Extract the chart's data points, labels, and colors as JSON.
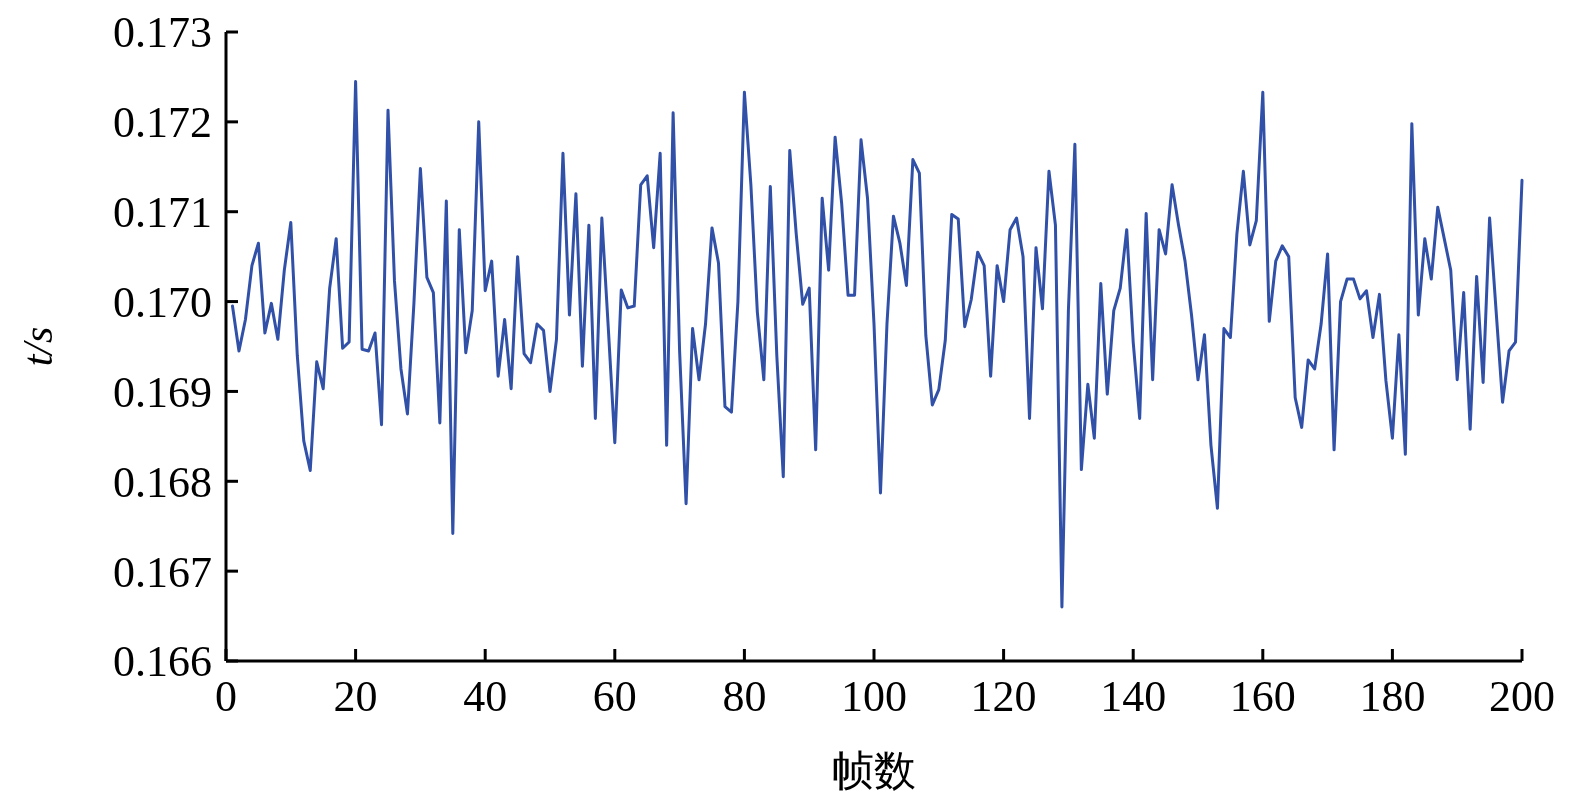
{
  "chart_data": {
    "type": "line",
    "xlabel": "帧数",
    "ylabel": "t/s",
    "xlim": [
      0,
      200
    ],
    "xticks": [
      0,
      20,
      40,
      60,
      80,
      100,
      120,
      140,
      160,
      180,
      200
    ],
    "ylim": [
      0.166,
      0.173
    ],
    "yticks": [
      {
        "value": 0.166,
        "label": "0.166"
      },
      {
        "value": 0.167,
        "label": "0.167"
      },
      {
        "value": 0.168,
        "label": "0.168"
      },
      {
        "value": 0.169,
        "label": "0.169"
      },
      {
        "value": 0.17,
        "label": "0.170"
      },
      {
        "value": 0.171,
        "label": "0.171"
      },
      {
        "value": 0.172,
        "label": "0.172"
      },
      {
        "value": 0.173,
        "label": "0.173"
      }
    ],
    "grid": false,
    "marker": "none",
    "line_style": "solid",
    "x": [
      1,
      2,
      3,
      4,
      5,
      6,
      7,
      8,
      9,
      10,
      11,
      12,
      13,
      14,
      15,
      16,
      17,
      18,
      19,
      20,
      21,
      22,
      23,
      24,
      25,
      26,
      27,
      28,
      29,
      30,
      31,
      32,
      33,
      34,
      35,
      36,
      37,
      38,
      39,
      40,
      41,
      42,
      43,
      44,
      45,
      46,
      47,
      48,
      49,
      50,
      51,
      52,
      53,
      54,
      55,
      56,
      57,
      58,
      59,
      60,
      61,
      62,
      63,
      64,
      65,
      66,
      67,
      68,
      69,
      70,
      71,
      72,
      73,
      74,
      75,
      76,
      77,
      78,
      79,
      80,
      81,
      82,
      83,
      84,
      85,
      86,
      87,
      88,
      89,
      90,
      91,
      92,
      93,
      94,
      95,
      96,
      97,
      98,
      99,
      100,
      101,
      102,
      103,
      104,
      105,
      106,
      107,
      108,
      109,
      110,
      111,
      112,
      113,
      114,
      115,
      116,
      117,
      118,
      119,
      120,
      121,
      122,
      123,
      124,
      125,
      126,
      127,
      128,
      129,
      130,
      131,
      132,
      133,
      134,
      135,
      136,
      137,
      138,
      139,
      140,
      141,
      142,
      143,
      144,
      145,
      146,
      147,
      148,
      149,
      150,
      151,
      152,
      153,
      154,
      155,
      156,
      157,
      158,
      159,
      160,
      161,
      162,
      163,
      164,
      165,
      166,
      167,
      168,
      169,
      170,
      171,
      172,
      173,
      174,
      175,
      176,
      177,
      178,
      179,
      180,
      181,
      182,
      183,
      184,
      185,
      186,
      187,
      188,
      189,
      190,
      191,
      192,
      193,
      194,
      195,
      196,
      197,
      198,
      199,
      200
    ],
    "series": [
      {
        "color": "#3150a8",
        "values": [
          0.16995,
          0.16945,
          0.1698,
          0.1704,
          0.17065,
          0.16965,
          0.16998,
          0.16958,
          0.17035,
          0.17088,
          0.1694,
          0.16845,
          0.16812,
          0.16933,
          0.16903,
          0.17015,
          0.1707,
          0.16948,
          0.16955,
          0.17245,
          0.16947,
          0.16945,
          0.16965,
          0.16863,
          0.17213,
          0.17023,
          0.16925,
          0.16875,
          0.16998,
          0.17148,
          0.17027,
          0.1701,
          0.16865,
          0.17112,
          0.16742,
          0.1708,
          0.16943,
          0.1699,
          0.172,
          0.17012,
          0.17045,
          0.16917,
          0.1698,
          0.16903,
          0.1705,
          0.16942,
          0.16932,
          0.16975,
          0.16968,
          0.169,
          0.16958,
          0.17165,
          0.16985,
          0.1712,
          0.16928,
          0.17085,
          0.1687,
          0.17093,
          0.1697,
          0.16843,
          0.17013,
          0.16993,
          0.16995,
          0.1713,
          0.1714,
          0.1706,
          0.17165,
          0.1684,
          0.1721,
          0.16945,
          0.16775,
          0.1697,
          0.16913,
          0.16975,
          0.17082,
          0.17043,
          0.16883,
          0.16877,
          0.17,
          0.17233,
          0.1713,
          0.16988,
          0.16913,
          0.17128,
          0.1694,
          0.16805,
          0.17168,
          0.17075,
          0.16997,
          0.17015,
          0.16835,
          0.17115,
          0.17035,
          0.17183,
          0.1711,
          0.17007,
          0.17007,
          0.1718,
          0.17115,
          0.16975,
          0.16787,
          0.16975,
          0.17095,
          0.17065,
          0.17018,
          0.17158,
          0.17143,
          0.16962,
          0.16885,
          0.16902,
          0.16957,
          0.17097,
          0.17092,
          0.16972,
          0.17002,
          0.17055,
          0.1704,
          0.16917,
          0.1704,
          0.17,
          0.1708,
          0.17093,
          0.1705,
          0.1687,
          0.1706,
          0.16992,
          0.17145,
          0.17085,
          0.1666,
          0.1699,
          0.17175,
          0.16813,
          0.16908,
          0.16848,
          0.1702,
          0.16897,
          0.1699,
          0.17015,
          0.1708,
          0.16955,
          0.1687,
          0.17098,
          0.16913,
          0.1708,
          0.17053,
          0.1713,
          0.17085,
          0.17045,
          0.16985,
          0.16913,
          0.16963,
          0.1684,
          0.1677,
          0.1697,
          0.1696,
          0.17075,
          0.17145,
          0.17063,
          0.1709,
          0.17233,
          0.16978,
          0.17045,
          0.17062,
          0.1705,
          0.16893,
          0.1686,
          0.16935,
          0.16925,
          0.16975,
          0.17053,
          0.16835,
          0.17,
          0.17025,
          0.17025,
          0.17003,
          0.17012,
          0.1696,
          0.17008,
          0.16912,
          0.16848,
          0.16963,
          0.1683,
          0.17198,
          0.16985,
          0.1707,
          0.17025,
          0.17105,
          0.1707,
          0.17035,
          0.16913,
          0.1701,
          0.16858,
          0.17028,
          0.1691,
          0.17093,
          0.1699,
          0.16888,
          0.16945,
          0.16955,
          0.17135
        ]
      }
    ]
  }
}
